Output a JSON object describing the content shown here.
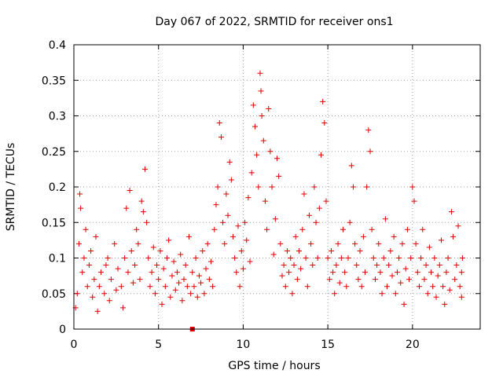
{
  "chart_data": {
    "type": "scatter",
    "title": "Day 067 of 2022, SRMTID for receiver ons1",
    "xlabel": "GPS time / hours",
    "ylabel": "SRMTID / TECUs",
    "xlim": [
      0,
      24
    ],
    "ylim": [
      0,
      0.4
    ],
    "grid": true,
    "x_ticks": [
      {
        "value": 0,
        "label": "0"
      },
      {
        "value": 5,
        "label": "5"
      },
      {
        "value": 10,
        "label": "10"
      },
      {
        "value": 15,
        "label": "15"
      },
      {
        "value": 20,
        "label": "20"
      }
    ],
    "y_ticks": [
      {
        "value": 0,
        "label": "0"
      },
      {
        "value": 0.05,
        "label": "0.05"
      },
      {
        "value": 0.1,
        "label": "0.1"
      },
      {
        "value": 0.15,
        "label": "0.15"
      },
      {
        "value": 0.2,
        "label": "0.2"
      },
      {
        "value": 0.25,
        "label": "0.25"
      },
      {
        "value": 0.3,
        "label": "0.3"
      },
      {
        "value": 0.35,
        "label": "0.35"
      },
      {
        "value": 0.4,
        "label": "0.4"
      }
    ],
    "marker": "plus",
    "color": "#e00000",
    "series": [
      {
        "name": "SRMTID",
        "points": [
          [
            0.1,
            0.03
          ],
          [
            0.2,
            0.05
          ],
          [
            0.3,
            0.12
          ],
          [
            0.35,
            0.19
          ],
          [
            0.4,
            0.17
          ],
          [
            0.5,
            0.08
          ],
          [
            0.6,
            0.1
          ],
          [
            0.7,
            0.14
          ],
          [
            0.8,
            0.06
          ],
          [
            0.9,
            0.09
          ],
          [
            1.0,
            0.11
          ],
          [
            1.1,
            0.045
          ],
          [
            1.2,
            0.07
          ],
          [
            1.3,
            0.13
          ],
          [
            1.4,
            0.025
          ],
          [
            1.5,
            0.06
          ],
          [
            1.6,
            0.08
          ],
          [
            1.8,
            0.05
          ],
          [
            1.9,
            0.09
          ],
          [
            2.0,
            0.1
          ],
          [
            2.1,
            0.04
          ],
          [
            2.2,
            0.07
          ],
          [
            2.4,
            0.12
          ],
          [
            2.5,
            0.055
          ],
          [
            2.6,
            0.085
          ],
          [
            2.8,
            0.06
          ],
          [
            2.9,
            0.03
          ],
          [
            3.0,
            0.1
          ],
          [
            3.1,
            0.17
          ],
          [
            3.2,
            0.08
          ],
          [
            3.3,
            0.195
          ],
          [
            3.4,
            0.11
          ],
          [
            3.5,
            0.065
          ],
          [
            3.6,
            0.09
          ],
          [
            3.7,
            0.14
          ],
          [
            3.8,
            0.12
          ],
          [
            3.9,
            0.07
          ],
          [
            4.0,
            0.18
          ],
          [
            4.1,
            0.165
          ],
          [
            4.2,
            0.225
          ],
          [
            4.3,
            0.15
          ],
          [
            4.4,
            0.1
          ],
          [
            4.5,
            0.06
          ],
          [
            4.6,
            0.08
          ],
          [
            4.7,
            0.115
          ],
          [
            4.8,
            0.05
          ],
          [
            4.9,
            0.09
          ],
          [
            5.0,
            0.07
          ],
          [
            5.1,
            0.11
          ],
          [
            5.2,
            0.035
          ],
          [
            5.3,
            0.085
          ],
          [
            5.4,
            0.06
          ],
          [
            5.5,
            0.1
          ],
          [
            5.6,
            0.125
          ],
          [
            5.7,
            0.045
          ],
          [
            5.8,
            0.075
          ],
          [
            5.9,
            0.095
          ],
          [
            6.0,
            0.055
          ],
          [
            6.1,
            0.08
          ],
          [
            6.2,
            0.065
          ],
          [
            6.3,
            0.105
          ],
          [
            6.4,
            0.04
          ],
          [
            6.5,
            0.07
          ],
          [
            6.6,
            0.09
          ],
          [
            6.7,
            0.06
          ],
          [
            6.8,
            0.13
          ],
          [
            6.9,
            0.05
          ],
          [
            7.0,
            0.08
          ],
          [
            7.1,
            0.06
          ],
          [
            7.2,
            0.1
          ],
          [
            7.3,
            0.045
          ],
          [
            7.4,
            0.075
          ],
          [
            7.5,
            0.065
          ],
          [
            7.6,
            0.11
          ],
          [
            7.7,
            0.05
          ],
          [
            7.8,
            0.085
          ],
          [
            7.9,
            0.12
          ],
          [
            8.0,
            0.07
          ],
          [
            8.1,
            0.095
          ],
          [
            8.2,
            0.06
          ],
          [
            8.3,
            0.14
          ],
          [
            8.4,
            0.175
          ],
          [
            8.5,
            0.2
          ],
          [
            8.6,
            0.29
          ],
          [
            8.7,
            0.27
          ],
          [
            8.8,
            0.15
          ],
          [
            8.9,
            0.12
          ],
          [
            9.0,
            0.19
          ],
          [
            9.1,
            0.16
          ],
          [
            9.2,
            0.235
          ],
          [
            9.3,
            0.21
          ],
          [
            9.4,
            0.13
          ],
          [
            9.5,
            0.1
          ],
          [
            9.6,
            0.08
          ],
          [
            9.7,
            0.145
          ],
          [
            9.8,
            0.06
          ],
          [
            9.9,
            0.11
          ],
          [
            10.0,
            0.085
          ],
          [
            10.1,
            0.15
          ],
          [
            10.2,
            0.125
          ],
          [
            10.3,
            0.185
          ],
          [
            10.4,
            0.095
          ],
          [
            10.5,
            0.22
          ],
          [
            10.6,
            0.315
          ],
          [
            10.7,
            0.285
          ],
          [
            10.8,
            0.245
          ],
          [
            10.9,
            0.2
          ],
          [
            11.0,
            0.36
          ],
          [
            11.05,
            0.335
          ],
          [
            11.1,
            0.3
          ],
          [
            11.2,
            0.265
          ],
          [
            11.3,
            0.18
          ],
          [
            11.4,
            0.14
          ],
          [
            11.5,
            0.31
          ],
          [
            11.6,
            0.25
          ],
          [
            11.7,
            0.2
          ],
          [
            11.8,
            0.105
          ],
          [
            11.9,
            0.155
          ],
          [
            12.0,
            0.24
          ],
          [
            12.1,
            0.215
          ],
          [
            12.2,
            0.12
          ],
          [
            12.3,
            0.075
          ],
          [
            12.4,
            0.09
          ],
          [
            12.5,
            0.06
          ],
          [
            12.6,
            0.11
          ],
          [
            12.7,
            0.08
          ],
          [
            12.8,
            0.1
          ],
          [
            12.9,
            0.05
          ],
          [
            13.0,
            0.09
          ],
          [
            13.1,
            0.13
          ],
          [
            13.2,
            0.07
          ],
          [
            13.3,
            0.11
          ],
          [
            13.4,
            0.085
          ],
          [
            13.5,
            0.14
          ],
          [
            13.6,
            0.19
          ],
          [
            13.7,
            0.1
          ],
          [
            13.8,
            0.06
          ],
          [
            13.9,
            0.16
          ],
          [
            14.0,
            0.12
          ],
          [
            14.1,
            0.09
          ],
          [
            14.2,
            0.2
          ],
          [
            14.3,
            0.15
          ],
          [
            14.4,
            0.1
          ],
          [
            14.5,
            0.17
          ],
          [
            14.6,
            0.245
          ],
          [
            14.7,
            0.32
          ],
          [
            14.8,
            0.29
          ],
          [
            14.9,
            0.18
          ],
          [
            15.0,
            0.1
          ],
          [
            15.1,
            0.07
          ],
          [
            15.2,
            0.11
          ],
          [
            15.3,
            0.08
          ],
          [
            15.4,
            0.05
          ],
          [
            15.5,
            0.09
          ],
          [
            15.6,
            0.12
          ],
          [
            15.7,
            0.065
          ],
          [
            15.8,
            0.1
          ],
          [
            15.9,
            0.14
          ],
          [
            16.0,
            0.08
          ],
          [
            16.1,
            0.06
          ],
          [
            16.2,
            0.1
          ],
          [
            16.3,
            0.15
          ],
          [
            16.4,
            0.23
          ],
          [
            16.5,
            0.2
          ],
          [
            16.6,
            0.12
          ],
          [
            16.7,
            0.09
          ],
          [
            16.8,
            0.07
          ],
          [
            16.9,
            0.11
          ],
          [
            17.0,
            0.06
          ],
          [
            17.1,
            0.13
          ],
          [
            17.2,
            0.08
          ],
          [
            17.3,
            0.2
          ],
          [
            17.4,
            0.28
          ],
          [
            17.5,
            0.25
          ],
          [
            17.6,
            0.14
          ],
          [
            17.7,
            0.1
          ],
          [
            17.8,
            0.07
          ],
          [
            17.9,
            0.09
          ],
          [
            18.0,
            0.12
          ],
          [
            18.1,
            0.08
          ],
          [
            18.2,
            0.05
          ],
          [
            18.3,
            0.1
          ],
          [
            18.4,
            0.155
          ],
          [
            18.5,
            0.06
          ],
          [
            18.6,
            0.09
          ],
          [
            18.7,
            0.11
          ],
          [
            18.8,
            0.075
          ],
          [
            18.9,
            0.13
          ],
          [
            19.0,
            0.05
          ],
          [
            19.1,
            0.08
          ],
          [
            19.2,
            0.1
          ],
          [
            19.3,
            0.065
          ],
          [
            19.4,
            0.12
          ],
          [
            19.5,
            0.035
          ],
          [
            19.6,
            0.085
          ],
          [
            19.7,
            0.14
          ],
          [
            19.8,
            0.07
          ],
          [
            19.9,
            0.1
          ],
          [
            20.0,
            0.2
          ],
          [
            20.1,
            0.18
          ],
          [
            20.2,
            0.12
          ],
          [
            20.3,
            0.08
          ],
          [
            20.4,
            0.06
          ],
          [
            20.5,
            0.1
          ],
          [
            20.6,
            0.14
          ],
          [
            20.7,
            0.07
          ],
          [
            20.8,
            0.09
          ],
          [
            20.9,
            0.05
          ],
          [
            21.0,
            0.115
          ],
          [
            21.1,
            0.08
          ],
          [
            21.2,
            0.06
          ],
          [
            21.3,
            0.1
          ],
          [
            21.4,
            0.045
          ],
          [
            21.5,
            0.075
          ],
          [
            21.6,
            0.09
          ],
          [
            21.7,
            0.125
          ],
          [
            21.8,
            0.06
          ],
          [
            21.9,
            0.035
          ],
          [
            22.0,
            0.08
          ],
          [
            22.1,
            0.1
          ],
          [
            22.2,
            0.055
          ],
          [
            22.3,
            0.165
          ],
          [
            22.4,
            0.13
          ],
          [
            22.5,
            0.07
          ],
          [
            22.6,
            0.09
          ],
          [
            22.7,
            0.145
          ],
          [
            22.8,
            0.06
          ],
          [
            22.9,
            0.08
          ],
          [
            22.95,
            0.1
          ],
          [
            22.9,
            0.045
          ]
        ]
      }
    ],
    "outlier_marker": {
      "x": 7.0,
      "y": 0.0
    }
  }
}
